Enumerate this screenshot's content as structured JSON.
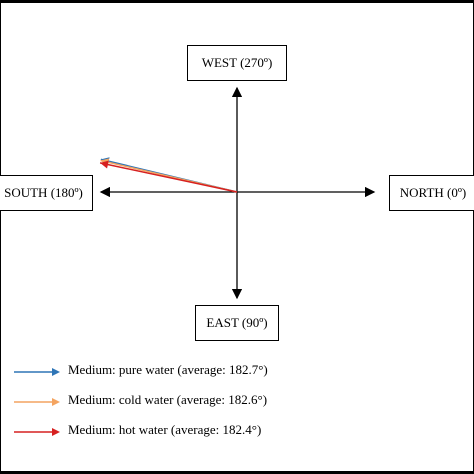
{
  "directions": {
    "west": "WEST (270º)",
    "south": "SOUTH (180º)",
    "north": "NORTH (0º)",
    "east": "EAST (90º)"
  },
  "legend": [
    {
      "label": "Medium: pure water (average: 182.7°)",
      "color": "#2e75b6"
    },
    {
      "label": "Medium: cold water (average: 182.6°)",
      "color": "#f4a460"
    },
    {
      "label": "Medium: hot water (average: 182.4°)",
      "color": "#d62020"
    }
  ],
  "chart_data": {
    "type": "compass-vector",
    "series": [
      {
        "name": "Medium: pure water (average: 182.7°)",
        "angle_deg": 182.7,
        "color": "#2e75b6"
      },
      {
        "name": "Medium: cold water (average: 182.6°)",
        "angle_deg": 182.6,
        "color": "#f4a460"
      },
      {
        "name": "Medium: hot water (average: 182.4°)",
        "angle_deg": 182.4,
        "color": "#d62020"
      }
    ]
  }
}
